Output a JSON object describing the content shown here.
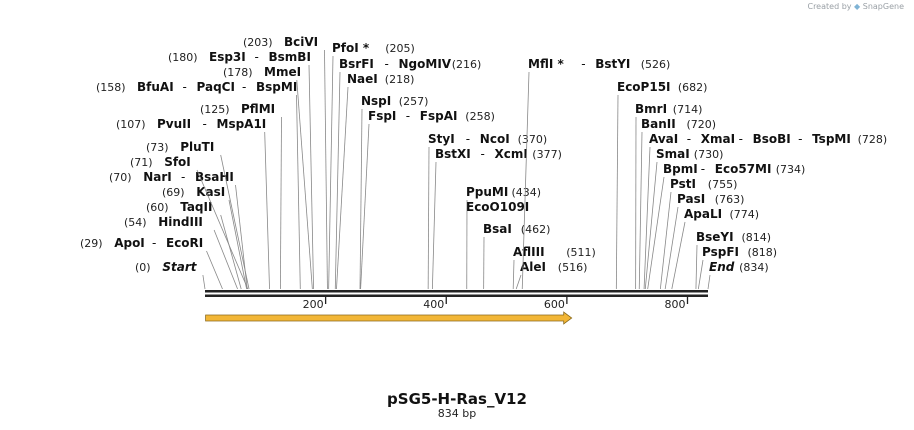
{
  "watermark": {
    "prefix": "Created by",
    "brand": "SnapGene"
  },
  "plasmid": {
    "name": "pSG5-H-Ras_V12",
    "length_label": "834 bp",
    "length_bp": 834
  },
  "ruler": {
    "ticks": [
      200,
      400,
      600,
      800
    ]
  },
  "feature": {
    "start_bp": 1,
    "end_bp": 608,
    "color": "#f2b636"
  },
  "sites": [
    {
      "names": [
        "Start"
      ],
      "pos": "(0)",
      "pos_first": true,
      "italic": true
    },
    {
      "names": [
        "ApoI",
        "EcoRI"
      ],
      "pos": "(29)",
      "pos_first": true
    },
    {
      "names": [
        "HindIII"
      ],
      "pos": "(54)",
      "pos_first": true
    },
    {
      "names": [
        "TaqII"
      ],
      "pos": "(60)",
      "pos_first": true
    },
    {
      "names": [
        "KasI"
      ],
      "pos": "(69)",
      "pos_first": true
    },
    {
      "names": [
        "NarI",
        "BsaHI"
      ],
      "pos": "(70)",
      "pos_first": true
    },
    {
      "names": [
        "SfoI"
      ],
      "pos": "(71)",
      "pos_first": true
    },
    {
      "names": [
        "PluTI"
      ],
      "pos": "(73)",
      "pos_first": true
    },
    {
      "names": [
        "PvuII",
        "MspA1I"
      ],
      "pos": "(107)",
      "pos_first": true
    },
    {
      "names": [
        "PflMI"
      ],
      "pos": "(125)",
      "pos_first": true
    },
    {
      "names": [
        "BfuAI",
        "PaqCI",
        "BspMI"
      ],
      "pos": "(158)",
      "pos_first": true
    },
    {
      "names": [
        "MmeI"
      ],
      "pos": "(178)",
      "pos_first": true
    },
    {
      "names": [
        "Esp3I",
        "BsmBI"
      ],
      "pos": "(180)",
      "pos_first": true
    },
    {
      "names": [
        "BciVI"
      ],
      "pos": "(203)",
      "pos_first": true
    },
    {
      "names": [
        "PfoI *"
      ],
      "pos": "(205)",
      "pos_first": false
    },
    {
      "names": [
        "BsrFI",
        "NgoMIV"
      ],
      "pos": "(216)",
      "pos_first": false
    },
    {
      "names": [
        "NaeI"
      ],
      "pos": "(218)",
      "pos_first": false
    },
    {
      "names": [
        "NspI"
      ],
      "pos": "(257)",
      "pos_first": false
    },
    {
      "names": [
        "FspI",
        "FspAI"
      ],
      "pos": "(258)",
      "pos_first": false
    },
    {
      "names": [
        "StyI",
        "NcoI"
      ],
      "pos": "(370)",
      "pos_first": false
    },
    {
      "names": [
        "BstXI",
        "XcmI"
      ],
      "pos": "(377)",
      "pos_first": false
    },
    {
      "names": [
        "PpuMI"
      ],
      "pos": "(434)",
      "pos_first": false
    },
    {
      "names": [
        "EcoO109I"
      ],
      "pos": "",
      "pos_first": false
    },
    {
      "names": [
        "BsaI"
      ],
      "pos": "(462)",
      "pos_first": false
    },
    {
      "names": [
        "AflIII"
      ],
      "pos": "(511)",
      "pos_first": false
    },
    {
      "names": [
        "AleI"
      ],
      "pos": "(516)",
      "pos_first": false
    },
    {
      "names": [
        "MflI *",
        "BstYI"
      ],
      "pos": "(526)",
      "pos_first": false
    },
    {
      "names": [
        "EcoP15I"
      ],
      "pos": "(682)",
      "pos_first": false
    },
    {
      "names": [
        "BmrI"
      ],
      "pos": "(714)",
      "pos_first": false
    },
    {
      "names": [
        "BanII"
      ],
      "pos": "(720)",
      "pos_first": false
    },
    {
      "names": [
        "AvaI",
        "XmaI",
        "BsoBI",
        "TspMI"
      ],
      "pos": "(728)",
      "pos_first": false
    },
    {
      "names": [
        "SmaI"
      ],
      "pos": "(730)",
      "pos_first": false
    },
    {
      "names": [
        "BpmI",
        "Eco57MI"
      ],
      "pos": "(734)",
      "pos_first": false
    },
    {
      "names": [
        "PstI"
      ],
      "pos": "(755)",
      "pos_first": false
    },
    {
      "names": [
        "PasI"
      ],
      "pos": "(763)",
      "pos_first": false
    },
    {
      "names": [
        "ApaLI"
      ],
      "pos": "(774)",
      "pos_first": false
    },
    {
      "names": [
        "BseYI"
      ],
      "pos": "(814)",
      "pos_first": false
    },
    {
      "names": [
        "PspFI"
      ],
      "pos": "(818)",
      "pos_first": false
    },
    {
      "names": [
        "End"
      ],
      "pos": "(834)",
      "pos_first": false,
      "italic": true
    }
  ]
}
